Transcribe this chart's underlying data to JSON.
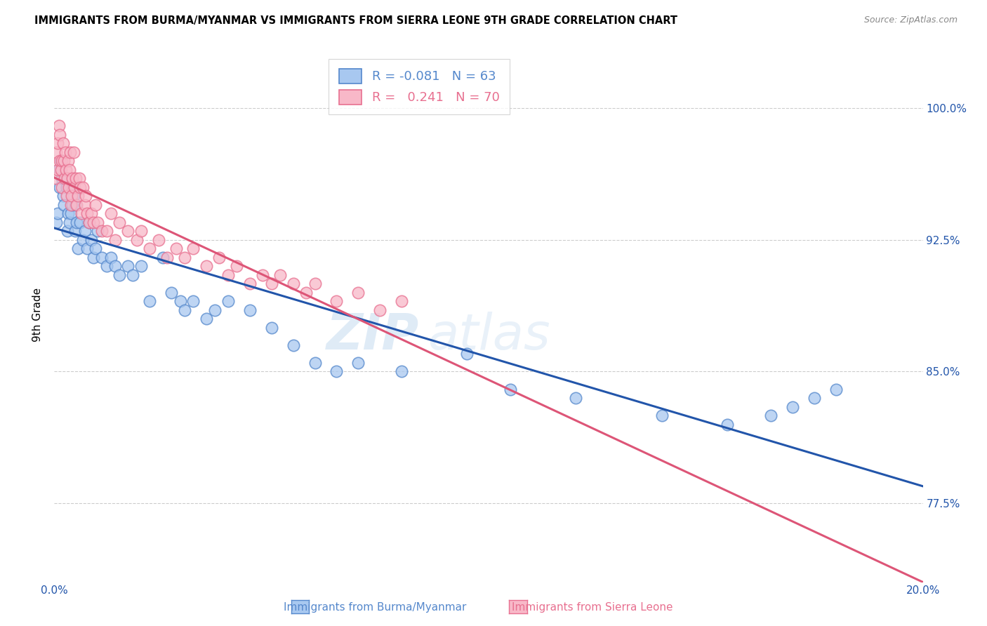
{
  "title": "IMMIGRANTS FROM BURMA/MYANMAR VS IMMIGRANTS FROM SIERRA LEONE 9TH GRADE CORRELATION CHART",
  "source_text": "Source: ZipAtlas.com",
  "ylabel": "9th Grade",
  "xlim": [
    0.0,
    20.0
  ],
  "ylim": [
    73.0,
    103.5
  ],
  "yticks": [
    77.5,
    85.0,
    92.5,
    100.0
  ],
  "ytick_labels": [
    "77.5%",
    "85.0%",
    "92.5%",
    "100.0%"
  ],
  "legend_blue_r": "-0.081",
  "legend_blue_n": "63",
  "legend_pink_r": "0.241",
  "legend_pink_n": "70",
  "blue_fill_color": "#A8C8F0",
  "blue_edge_color": "#5588CC",
  "pink_fill_color": "#F8B8C8",
  "pink_edge_color": "#E87090",
  "blue_line_color": "#2255AA",
  "pink_line_color": "#DD5577",
  "grid_color": "#CCCCCC",
  "watermark_color": "#C8DDEF",
  "blue_scatter_x": [
    0.05,
    0.08,
    0.1,
    0.12,
    0.15,
    0.18,
    0.2,
    0.22,
    0.25,
    0.28,
    0.3,
    0.32,
    0.35,
    0.38,
    0.4,
    0.42,
    0.45,
    0.48,
    0.5,
    0.52,
    0.55,
    0.6,
    0.65,
    0.7,
    0.75,
    0.8,
    0.85,
    0.9,
    0.95,
    1.0,
    1.1,
    1.2,
    1.3,
    1.4,
    1.5,
    1.7,
    1.8,
    2.0,
    2.2,
    2.5,
    2.7,
    2.9,
    3.0,
    3.2,
    3.5,
    3.7,
    4.0,
    4.5,
    5.0,
    5.5,
    6.0,
    6.5,
    7.0,
    8.0,
    9.5,
    10.5,
    12.0,
    14.0,
    15.5,
    16.5,
    17.0,
    17.5,
    18.0
  ],
  "blue_scatter_y": [
    93.5,
    94.0,
    96.5,
    95.5,
    97.0,
    96.0,
    95.0,
    94.5,
    96.0,
    95.5,
    93.0,
    94.0,
    93.5,
    94.0,
    95.5,
    94.5,
    95.0,
    93.0,
    94.5,
    93.5,
    92.0,
    93.5,
    92.5,
    93.0,
    92.0,
    93.5,
    92.5,
    91.5,
    92.0,
    93.0,
    91.5,
    91.0,
    91.5,
    91.0,
    90.5,
    91.0,
    90.5,
    91.0,
    89.0,
    91.5,
    89.5,
    89.0,
    88.5,
    89.0,
    88.0,
    88.5,
    89.0,
    88.5,
    87.5,
    86.5,
    85.5,
    85.0,
    85.5,
    85.0,
    86.0,
    84.0,
    83.5,
    82.5,
    82.0,
    82.5,
    83.0,
    83.5,
    84.0
  ],
  "pink_scatter_x": [
    0.03,
    0.05,
    0.07,
    0.08,
    0.1,
    0.12,
    0.13,
    0.15,
    0.17,
    0.18,
    0.2,
    0.22,
    0.23,
    0.25,
    0.27,
    0.28,
    0.3,
    0.32,
    0.33,
    0.35,
    0.37,
    0.38,
    0.4,
    0.42,
    0.45,
    0.47,
    0.5,
    0.52,
    0.55,
    0.57,
    0.6,
    0.63,
    0.65,
    0.7,
    0.72,
    0.75,
    0.8,
    0.85,
    0.9,
    0.95,
    1.0,
    1.1,
    1.2,
    1.3,
    1.4,
    1.5,
    1.7,
    1.9,
    2.0,
    2.2,
    2.4,
    2.6,
    2.8,
    3.0,
    3.2,
    3.5,
    3.8,
    4.0,
    4.2,
    4.5,
    4.8,
    5.0,
    5.2,
    5.5,
    5.8,
    6.0,
    6.5,
    7.0,
    7.5,
    8.0
  ],
  "pink_scatter_y": [
    96.0,
    97.5,
    98.0,
    96.5,
    99.0,
    97.0,
    98.5,
    96.5,
    95.5,
    97.0,
    98.0,
    97.0,
    96.0,
    97.5,
    96.5,
    95.0,
    96.0,
    97.0,
    95.5,
    96.5,
    97.5,
    94.5,
    95.0,
    96.0,
    97.5,
    95.5,
    96.0,
    94.5,
    95.0,
    96.0,
    95.5,
    94.0,
    95.5,
    94.5,
    95.0,
    94.0,
    93.5,
    94.0,
    93.5,
    94.5,
    93.5,
    93.0,
    93.0,
    94.0,
    92.5,
    93.5,
    93.0,
    92.5,
    93.0,
    92.0,
    92.5,
    91.5,
    92.0,
    91.5,
    92.0,
    91.0,
    91.5,
    90.5,
    91.0,
    90.0,
    90.5,
    90.0,
    90.5,
    90.0,
    89.5,
    90.0,
    89.0,
    89.5,
    88.5,
    89.0
  ]
}
